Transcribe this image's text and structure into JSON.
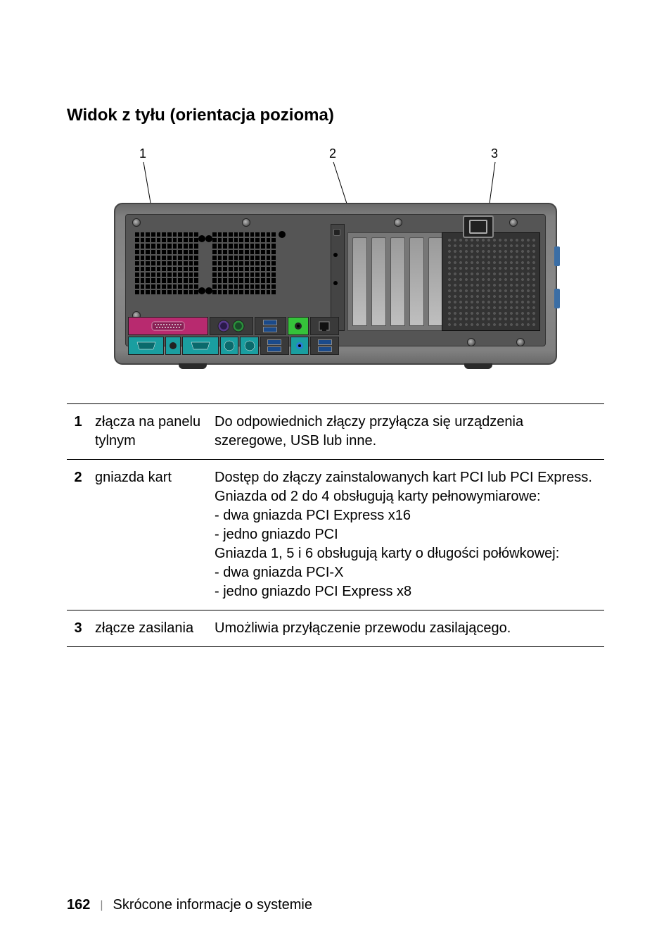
{
  "heading": "Widok z tyłu (orientacja pozioma)",
  "callouts": [
    "1",
    "2",
    "3"
  ],
  "colors": {
    "parallel_bg": "#b82a6f",
    "serial_bg": "#1a9ea0",
    "ps2_bg": "#5a3a8f",
    "usb_bg": "#3a3a3a",
    "audio_green": "#35c23a",
    "audio_blue": "#2a7bd6",
    "audio_pink": "#d66aa0",
    "clip_blue": "#3b6ea5"
  },
  "legend": [
    {
      "num": "1",
      "label": "złącza na panelu tylnym",
      "desc": "Do odpowiednich złączy przyłącza się urządzenia szeregowe, USB lub inne."
    },
    {
      "num": "2",
      "label": "gniazda kart",
      "desc": "Dostęp do złączy zainstalowanych kart PCI lub PCI Express.\nGniazda od 2 do 4 obsługują karty pełnowymiarowe:\n- dwa gniazda PCI Express x16\n- jedno gniazdo PCI\nGniazda 1, 5 i 6 obsługują karty o długości połówkowej:\n- dwa gniazda PCI-X\n- jedno gniazdo PCI Express x8"
    },
    {
      "num": "3",
      "label": "złącze zasilania",
      "desc": "Umożliwia przyłączenie przewodu zasilającego."
    }
  ],
  "footer": {
    "page": "162",
    "section": "Skrócone informacje o systemie"
  }
}
